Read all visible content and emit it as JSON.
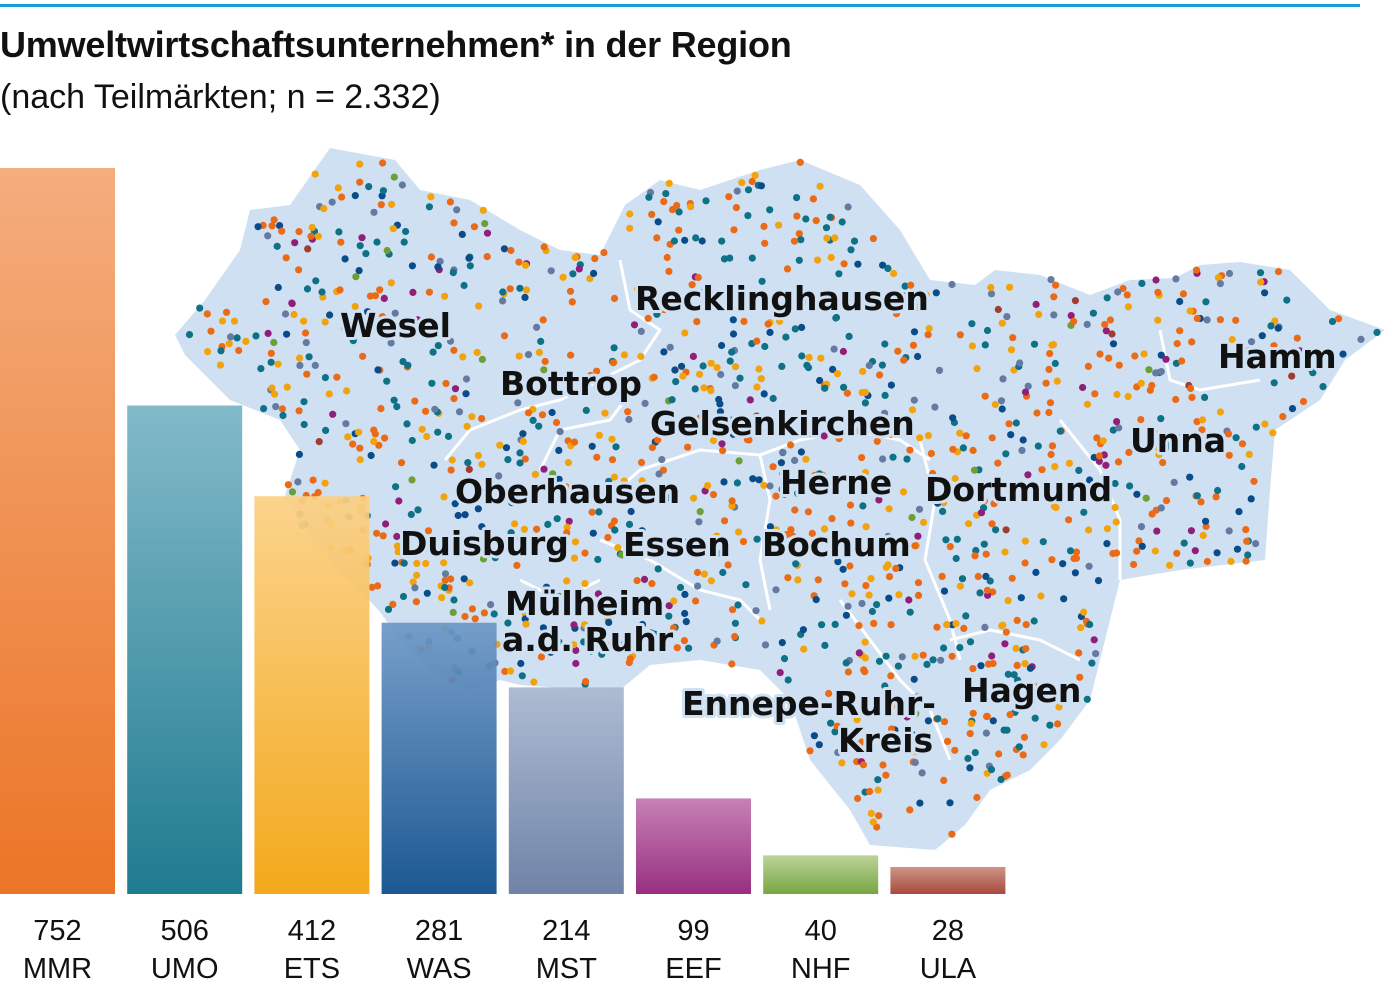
{
  "title": "Umweltwirtschaftsunternehmen* in der Region",
  "subtitle": "(nach Teilmärkten; n = 2.332)",
  "map_labels": [
    "Wesel",
    "Recklinghausen",
    "Bottrop",
    "Gelsenkirchen",
    "Hamm",
    "Unna",
    "Herne",
    "Dortmund",
    "Oberhausen",
    "Duisburg",
    "Essen",
    "Bochum",
    "Mülheim",
    "a.d. Ruhr",
    "Ennepe-Ruhr-",
    "Kreis",
    "Hagen"
  ],
  "colors": {
    "accent_line": "#1a9ad6",
    "map_fill": "#cfe0f3",
    "map_boundary": "#ffffff"
  },
  "chart_data": {
    "type": "bar",
    "categories": [
      "MMR",
      "UMO",
      "ETS",
      "WAS",
      "MST",
      "EEF",
      "NHF",
      "ULA"
    ],
    "values": [
      752,
      506,
      412,
      281,
      214,
      99,
      40,
      28
    ],
    "value_labels": [
      "752",
      "506",
      "412",
      "281",
      "214",
      "99",
      "40",
      "28"
    ],
    "colors": [
      [
        "#f3a774",
        "#ea6a16"
      ],
      [
        "#79b5c6",
        "#0e7186"
      ],
      [
        "#fbd084",
        "#f2a20a"
      ],
      [
        "#6e98c6",
        "#0a4c8a"
      ],
      [
        "#a7b7cf",
        "#657aa1"
      ],
      [
        "#c178b0",
        "#911f79"
      ],
      [
        "#b6d090",
        "#6d9f34"
      ],
      [
        "#c98d7c",
        "#a13c30"
      ]
    ],
    "title": "Umweltwirtschaftsunternehmen* in der Region",
    "subtitle": "(nach Teilmärkten; n = 2.332)",
    "xlabel": "",
    "ylabel": "",
    "grid": false,
    "legend": "none"
  }
}
